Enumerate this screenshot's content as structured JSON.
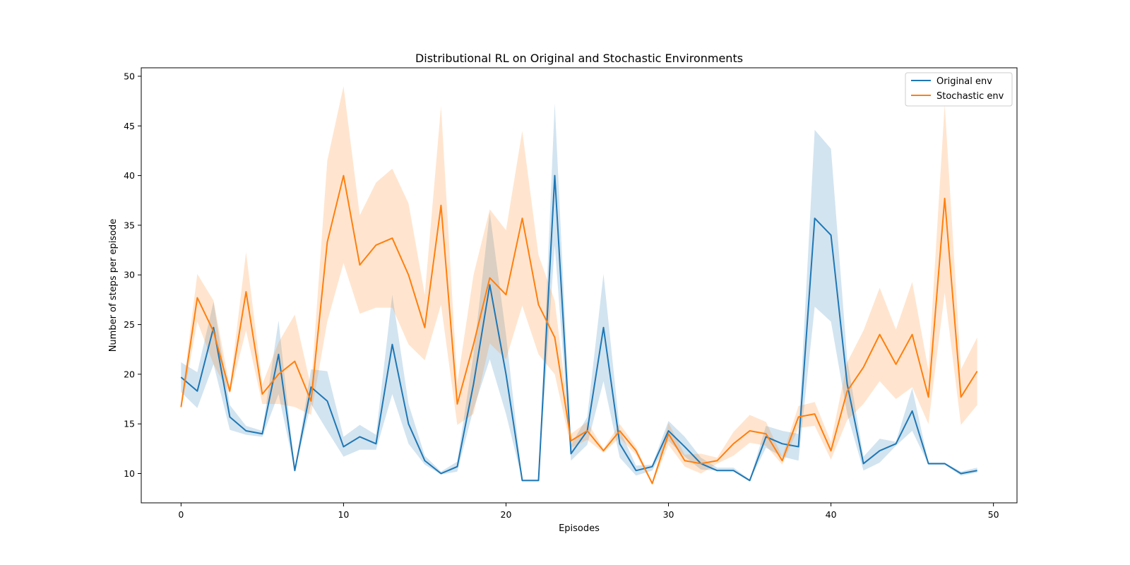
{
  "chart_data": {
    "type": "line",
    "title": "Distributional RL on Original and Stochastic Environments",
    "xlabel": "Episodes",
    "ylabel": "Number of steps per episode",
    "xlim": [
      -2.45,
      51.45
    ],
    "ylim": [
      7.05,
      50.85
    ],
    "xticks": [
      0,
      10,
      20,
      30,
      40,
      50
    ],
    "yticks": [
      10,
      15,
      20,
      25,
      30,
      35,
      40,
      45,
      50
    ],
    "legend_position": "top-right",
    "x": [
      0,
      1,
      2,
      3,
      4,
      5,
      6,
      7,
      8,
      9,
      10,
      11,
      12,
      13,
      14,
      15,
      16,
      17,
      18,
      19,
      20,
      21,
      22,
      23,
      24,
      25,
      26,
      27,
      28,
      29,
      30,
      31,
      32,
      33,
      34,
      35,
      36,
      37,
      38,
      39,
      40,
      41,
      42,
      43,
      44,
      45,
      46,
      47,
      48,
      49
    ],
    "series": [
      {
        "name": "Original env",
        "color": "#1f77b4",
        "band_color": "rgba(31,119,180,0.2)",
        "values": [
          19.7,
          18.3,
          24.7,
          15.7,
          14.3,
          14.0,
          22.0,
          10.3,
          18.7,
          17.3,
          12.7,
          13.7,
          13.0,
          23.0,
          15.0,
          11.3,
          10.0,
          10.7,
          19.0,
          29.0,
          20.0,
          9.3,
          9.3,
          40.0,
          12.0,
          14.3,
          24.7,
          13.0,
          10.3,
          10.7,
          14.3,
          12.7,
          11.0,
          10.3,
          10.3,
          9.3,
          13.7,
          13.0,
          12.7,
          35.7,
          34.0,
          19.0,
          11.0,
          12.3,
          13.0,
          16.3,
          11.0,
          11.0,
          10.0,
          10.3
        ],
        "lower": [
          18.2,
          16.6,
          21.0,
          14.4,
          13.9,
          13.7,
          18.0,
          10.3,
          17.0,
          14.3,
          11.7,
          12.4,
          12.4,
          18.0,
          13.0,
          10.9,
          9.9,
          10.2,
          16.5,
          21.5,
          16.0,
          9.3,
          9.3,
          33.0,
          11.3,
          12.9,
          19.3,
          11.6,
          9.8,
          10.3,
          13.3,
          11.7,
          10.4,
          10.3,
          10.3,
          9.3,
          12.6,
          11.7,
          11.3,
          26.8,
          25.3,
          16.0,
          10.3,
          11.1,
          12.8,
          14.3,
          10.9,
          10.9,
          9.8,
          10.1
        ],
        "upper": [
          21.2,
          20.2,
          27.3,
          16.9,
          14.8,
          14.3,
          25.4,
          10.4,
          20.5,
          20.3,
          13.7,
          14.9,
          13.9,
          28.0,
          17.0,
          11.8,
          10.2,
          11.2,
          22.0,
          36.3,
          24.0,
          9.4,
          9.4,
          47.3,
          12.9,
          15.7,
          30.1,
          14.4,
          10.8,
          10.9,
          15.3,
          13.7,
          11.6,
          10.6,
          10.6,
          9.4,
          14.8,
          14.3,
          14.0,
          44.6,
          42.7,
          21.5,
          11.7,
          13.5,
          13.2,
          18.6,
          11.1,
          11.1,
          10.2,
          10.6
        ]
      },
      {
        "name": "Stochastic env",
        "color": "#ff7f0e",
        "band_color": "rgba(255,127,14,0.2)",
        "values": [
          16.7,
          27.7,
          24.3,
          18.3,
          28.3,
          18.0,
          20.0,
          21.3,
          17.3,
          33.3,
          40.0,
          31.0,
          33.0,
          33.7,
          30.0,
          24.7,
          37.0,
          17.0,
          23.0,
          29.7,
          28.0,
          35.7,
          27.0,
          23.7,
          13.3,
          14.3,
          12.3,
          14.3,
          12.3,
          9.0,
          14.0,
          11.3,
          11.0,
          11.3,
          13.0,
          14.3,
          14.0,
          11.3,
          15.7,
          16.0,
          12.3,
          18.3,
          20.7,
          24.0,
          21.0,
          24.0,
          17.7,
          37.7,
          17.7,
          20.3
        ],
        "lower": [
          16.4,
          25.3,
          21.0,
          18.0,
          24.4,
          17.0,
          17.0,
          16.7,
          15.9,
          25.3,
          31.2,
          26.1,
          26.7,
          26.7,
          23.0,
          21.4,
          27.0,
          14.9,
          16.0,
          23.1,
          21.5,
          26.9,
          22.0,
          20.0,
          12.6,
          13.4,
          12.1,
          13.6,
          11.9,
          8.9,
          12.9,
          10.7,
          10.0,
          11.0,
          11.8,
          13.1,
          12.8,
          10.9,
          14.6,
          14.8,
          11.4,
          15.4,
          17.0,
          19.3,
          17.5,
          18.7,
          15.0,
          28.2,
          14.9,
          16.9
        ],
        "upper": [
          17.0,
          30.1,
          27.4,
          18.7,
          32.3,
          19.0,
          23.2,
          26.0,
          18.7,
          41.5,
          49.0,
          36.0,
          39.3,
          40.7,
          37.2,
          28.0,
          47.0,
          19.1,
          30.0,
          36.6,
          34.5,
          44.5,
          32.0,
          27.4,
          14.0,
          15.2,
          12.5,
          15.0,
          12.7,
          9.1,
          15.1,
          11.9,
          12.0,
          11.6,
          14.2,
          15.9,
          15.2,
          11.7,
          16.8,
          17.2,
          13.2,
          21.2,
          24.4,
          28.7,
          24.5,
          29.3,
          20.4,
          47.2,
          20.5,
          23.7
        ]
      }
    ]
  }
}
